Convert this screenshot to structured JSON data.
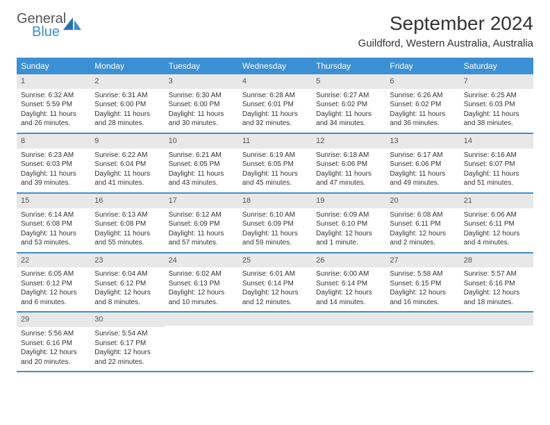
{
  "logo": {
    "line1": "General",
    "line2": "Blue"
  },
  "title": "September 2024",
  "location": "Guildford, Western Australia, Australia",
  "header_bg": "#3b8fd4",
  "daynum_bg": "#e8e8e8",
  "row_border": "#3b8fd4",
  "weekdays": [
    "Sunday",
    "Monday",
    "Tuesday",
    "Wednesday",
    "Thursday",
    "Friday",
    "Saturday"
  ],
  "weeks": [
    [
      {
        "n": "1",
        "sr": "Sunrise: 6:32 AM",
        "ss": "Sunset: 5:59 PM",
        "d1": "Daylight: 11 hours",
        "d2": "and 26 minutes."
      },
      {
        "n": "2",
        "sr": "Sunrise: 6:31 AM",
        "ss": "Sunset: 6:00 PM",
        "d1": "Daylight: 11 hours",
        "d2": "and 28 minutes."
      },
      {
        "n": "3",
        "sr": "Sunrise: 6:30 AM",
        "ss": "Sunset: 6:00 PM",
        "d1": "Daylight: 11 hours",
        "d2": "and 30 minutes."
      },
      {
        "n": "4",
        "sr": "Sunrise: 6:28 AM",
        "ss": "Sunset: 6:01 PM",
        "d1": "Daylight: 11 hours",
        "d2": "and 32 minutes."
      },
      {
        "n": "5",
        "sr": "Sunrise: 6:27 AM",
        "ss": "Sunset: 6:02 PM",
        "d1": "Daylight: 11 hours",
        "d2": "and 34 minutes."
      },
      {
        "n": "6",
        "sr": "Sunrise: 6:26 AM",
        "ss": "Sunset: 6:02 PM",
        "d1": "Daylight: 11 hours",
        "d2": "and 36 minutes."
      },
      {
        "n": "7",
        "sr": "Sunrise: 6:25 AM",
        "ss": "Sunset: 6:03 PM",
        "d1": "Daylight: 11 hours",
        "d2": "and 38 minutes."
      }
    ],
    [
      {
        "n": "8",
        "sr": "Sunrise: 6:23 AM",
        "ss": "Sunset: 6:03 PM",
        "d1": "Daylight: 11 hours",
        "d2": "and 39 minutes."
      },
      {
        "n": "9",
        "sr": "Sunrise: 6:22 AM",
        "ss": "Sunset: 6:04 PM",
        "d1": "Daylight: 11 hours",
        "d2": "and 41 minutes."
      },
      {
        "n": "10",
        "sr": "Sunrise: 6:21 AM",
        "ss": "Sunset: 6:05 PM",
        "d1": "Daylight: 11 hours",
        "d2": "and 43 minutes."
      },
      {
        "n": "11",
        "sr": "Sunrise: 6:19 AM",
        "ss": "Sunset: 6:05 PM",
        "d1": "Daylight: 11 hours",
        "d2": "and 45 minutes."
      },
      {
        "n": "12",
        "sr": "Sunrise: 6:18 AM",
        "ss": "Sunset: 6:06 PM",
        "d1": "Daylight: 11 hours",
        "d2": "and 47 minutes."
      },
      {
        "n": "13",
        "sr": "Sunrise: 6:17 AM",
        "ss": "Sunset: 6:06 PM",
        "d1": "Daylight: 11 hours",
        "d2": "and 49 minutes."
      },
      {
        "n": "14",
        "sr": "Sunrise: 6:16 AM",
        "ss": "Sunset: 6:07 PM",
        "d1": "Daylight: 11 hours",
        "d2": "and 51 minutes."
      }
    ],
    [
      {
        "n": "15",
        "sr": "Sunrise: 6:14 AM",
        "ss": "Sunset: 6:08 PM",
        "d1": "Daylight: 11 hours",
        "d2": "and 53 minutes."
      },
      {
        "n": "16",
        "sr": "Sunrise: 6:13 AM",
        "ss": "Sunset: 6:08 PM",
        "d1": "Daylight: 11 hours",
        "d2": "and 55 minutes."
      },
      {
        "n": "17",
        "sr": "Sunrise: 6:12 AM",
        "ss": "Sunset: 6:09 PM",
        "d1": "Daylight: 11 hours",
        "d2": "and 57 minutes."
      },
      {
        "n": "18",
        "sr": "Sunrise: 6:10 AM",
        "ss": "Sunset: 6:09 PM",
        "d1": "Daylight: 11 hours",
        "d2": "and 59 minutes."
      },
      {
        "n": "19",
        "sr": "Sunrise: 6:09 AM",
        "ss": "Sunset: 6:10 PM",
        "d1": "Daylight: 12 hours",
        "d2": "and 1 minute."
      },
      {
        "n": "20",
        "sr": "Sunrise: 6:08 AM",
        "ss": "Sunset: 6:11 PM",
        "d1": "Daylight: 12 hours",
        "d2": "and 2 minutes."
      },
      {
        "n": "21",
        "sr": "Sunrise: 6:06 AM",
        "ss": "Sunset: 6:11 PM",
        "d1": "Daylight: 12 hours",
        "d2": "and 4 minutes."
      }
    ],
    [
      {
        "n": "22",
        "sr": "Sunrise: 6:05 AM",
        "ss": "Sunset: 6:12 PM",
        "d1": "Daylight: 12 hours",
        "d2": "and 6 minutes."
      },
      {
        "n": "23",
        "sr": "Sunrise: 6:04 AM",
        "ss": "Sunset: 6:12 PM",
        "d1": "Daylight: 12 hours",
        "d2": "and 8 minutes."
      },
      {
        "n": "24",
        "sr": "Sunrise: 6:02 AM",
        "ss": "Sunset: 6:13 PM",
        "d1": "Daylight: 12 hours",
        "d2": "and 10 minutes."
      },
      {
        "n": "25",
        "sr": "Sunrise: 6:01 AM",
        "ss": "Sunset: 6:14 PM",
        "d1": "Daylight: 12 hours",
        "d2": "and 12 minutes."
      },
      {
        "n": "26",
        "sr": "Sunrise: 6:00 AM",
        "ss": "Sunset: 6:14 PM",
        "d1": "Daylight: 12 hours",
        "d2": "and 14 minutes."
      },
      {
        "n": "27",
        "sr": "Sunrise: 5:58 AM",
        "ss": "Sunset: 6:15 PM",
        "d1": "Daylight: 12 hours",
        "d2": "and 16 minutes."
      },
      {
        "n": "28",
        "sr": "Sunrise: 5:57 AM",
        "ss": "Sunset: 6:16 PM",
        "d1": "Daylight: 12 hours",
        "d2": "and 18 minutes."
      }
    ],
    [
      {
        "n": "29",
        "sr": "Sunrise: 5:56 AM",
        "ss": "Sunset: 6:16 PM",
        "d1": "Daylight: 12 hours",
        "d2": "and 20 minutes."
      },
      {
        "n": "30",
        "sr": "Sunrise: 5:54 AM",
        "ss": "Sunset: 6:17 PM",
        "d1": "Daylight: 12 hours",
        "d2": "and 22 minutes."
      },
      {
        "n": "",
        "sr": "",
        "ss": "",
        "d1": "",
        "d2": ""
      },
      {
        "n": "",
        "sr": "",
        "ss": "",
        "d1": "",
        "d2": ""
      },
      {
        "n": "",
        "sr": "",
        "ss": "",
        "d1": "",
        "d2": ""
      },
      {
        "n": "",
        "sr": "",
        "ss": "",
        "d1": "",
        "d2": ""
      },
      {
        "n": "",
        "sr": "",
        "ss": "",
        "d1": "",
        "d2": ""
      }
    ]
  ]
}
